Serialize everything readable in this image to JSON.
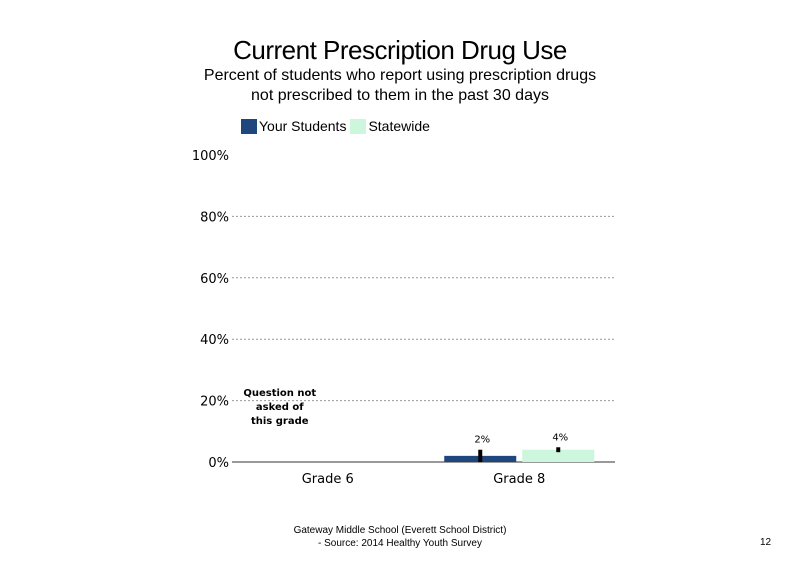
{
  "chart_data": {
    "type": "bar",
    "title": "Current Prescription Drug Use",
    "subtitle": "Percent of students  who report using prescription drugs not prescribed to them in the past 30 days",
    "categories": [
      "Grade 6",
      "Grade 8"
    ],
    "series": [
      {
        "name": "Your Students",
        "color": "#1f477d",
        "values": [
          null,
          2
        ],
        "labels": [
          "",
          "2%"
        ],
        "error": [
          null,
          2
        ]
      },
      {
        "name": "Statewide",
        "color": "#ccf7dc",
        "values": [
          null,
          4
        ],
        "labels": [
          "",
          "4%"
        ],
        "error": [
          null,
          0.8
        ]
      }
    ],
    "ylim": [
      0,
      100
    ],
    "yticks": [
      0,
      20,
      40,
      60,
      80,
      100
    ],
    "ytick_labels": [
      "0%",
      "20%",
      "40%",
      "60%",
      "80%",
      "100%"
    ],
    "grid": "dotted horizontal",
    "legend_position": "top",
    "annotations": [
      {
        "category": "Grade 6",
        "lines": [
          "Question not",
          "asked of",
          "this grade"
        ]
      }
    ]
  },
  "footer": {
    "line1": "Gateway Middle  School  (Everett School District)",
    "line2": "- Source: 2014 Healthy  Youth Survey"
  },
  "page_number": "12"
}
